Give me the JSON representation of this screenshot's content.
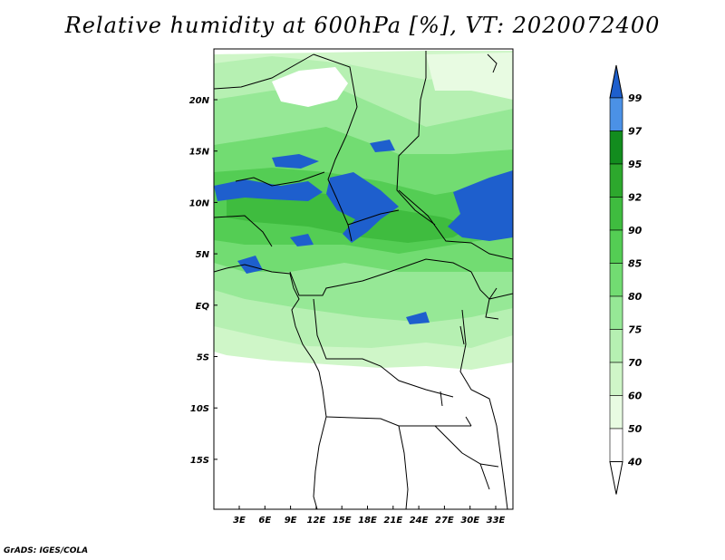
{
  "title": "Relative humidity at 600hPa [%], VT: 2020072400",
  "credit": "GrADS: IGES/COLA",
  "map": {
    "lat_ticks": [
      "20N",
      "15N",
      "10N",
      "5N",
      "EQ",
      "5S",
      "10S",
      "15S"
    ],
    "lon_ticks": [
      "3E",
      "6E",
      "9E",
      "12E",
      "15E",
      "18E",
      "21E",
      "24E",
      "27E",
      "30E",
      "33E"
    ]
  },
  "colorbar": {
    "levels": [
      "99",
      "97",
      "95",
      "92",
      "90",
      "85",
      "80",
      "75",
      "70",
      "60",
      "50",
      "40"
    ],
    "colors": [
      "#1e5fcd",
      "#4b91e6",
      "#128c1e",
      "#2da82d",
      "#3fbc3f",
      "#54cd54",
      "#72dc72",
      "#96e896",
      "#b6f0b2",
      "#cff6c8",
      "#e8fbe2",
      "#ffffff"
    ]
  }
}
